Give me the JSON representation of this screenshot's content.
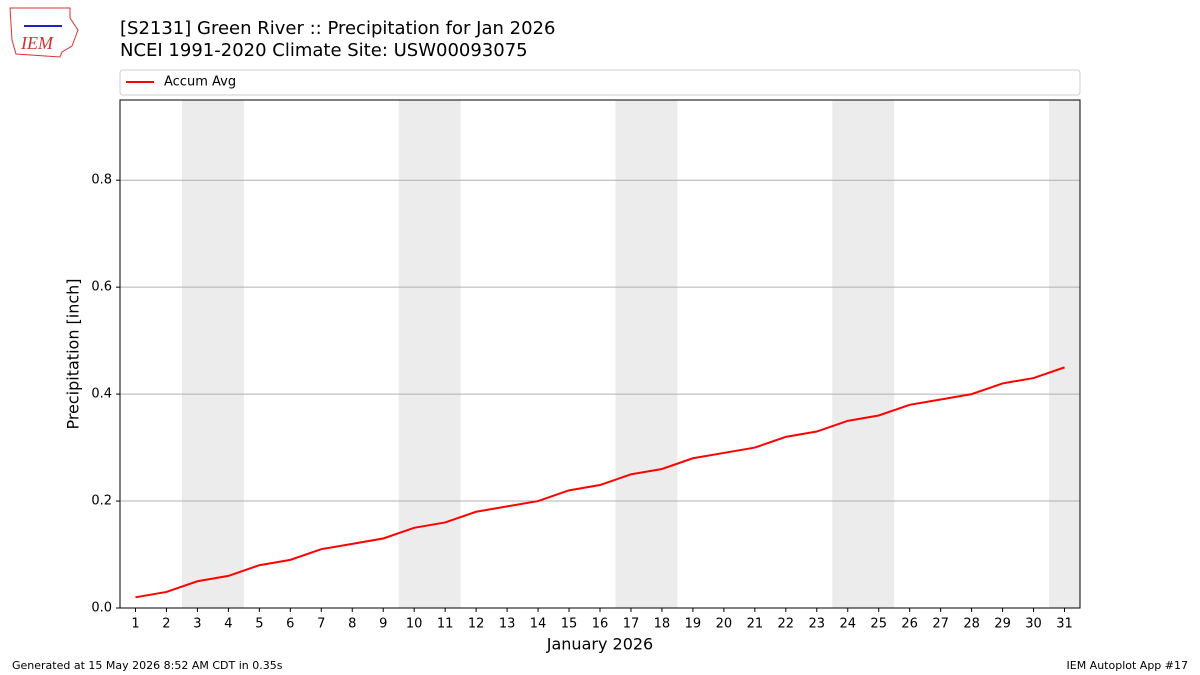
{
  "logo_text": "IEM",
  "footer_left": "Generated at 15 May 2026 8:52 AM CDT in 0.35s",
  "footer_right": "IEM Autoplot App #17",
  "chart_data": {
    "type": "line",
    "title": "[S2131] Green River :: Precipitation for Jan 2026",
    "subtitle": "NCEI 1991-2020 Climate Site: USW00093075",
    "xlabel": "January 2026",
    "ylabel": "Precipitation [inch]",
    "x": [
      1,
      2,
      3,
      4,
      5,
      6,
      7,
      8,
      9,
      10,
      11,
      12,
      13,
      14,
      15,
      16,
      17,
      18,
      19,
      20,
      21,
      22,
      23,
      24,
      25,
      26,
      27,
      28,
      29,
      30,
      31
    ],
    "series": [
      {
        "name": "Accum Avg",
        "color": "#ff0000",
        "values": [
          0.02,
          0.03,
          0.05,
          0.06,
          0.08,
          0.09,
          0.11,
          0.12,
          0.13,
          0.15,
          0.16,
          0.18,
          0.19,
          0.2,
          0.22,
          0.23,
          0.25,
          0.26,
          0.28,
          0.29,
          0.3,
          0.32,
          0.33,
          0.35,
          0.36,
          0.38,
          0.39,
          0.4,
          0.42,
          0.43,
          0.45
        ]
      }
    ],
    "shaded_ranges": [
      [
        2.5,
        4.5
      ],
      [
        9.5,
        11.5
      ],
      [
        16.5,
        18.5
      ],
      [
        23.5,
        25.5
      ],
      [
        30.5,
        31.5
      ]
    ],
    "shade_color": "#ececec",
    "xlim": [
      0.5,
      31.5
    ],
    "xticks": [
      1,
      2,
      3,
      4,
      5,
      6,
      7,
      8,
      9,
      10,
      11,
      12,
      13,
      14,
      15,
      16,
      17,
      18,
      19,
      20,
      21,
      22,
      23,
      24,
      25,
      26,
      27,
      28,
      29,
      30,
      31
    ],
    "ylim": [
      0,
      0.95
    ],
    "yticks": [
      {
        "value": 0,
        "label": "0.0"
      },
      0.2,
      0.4,
      0.6,
      0.8
    ],
    "grid": true,
    "legend": "top"
  }
}
